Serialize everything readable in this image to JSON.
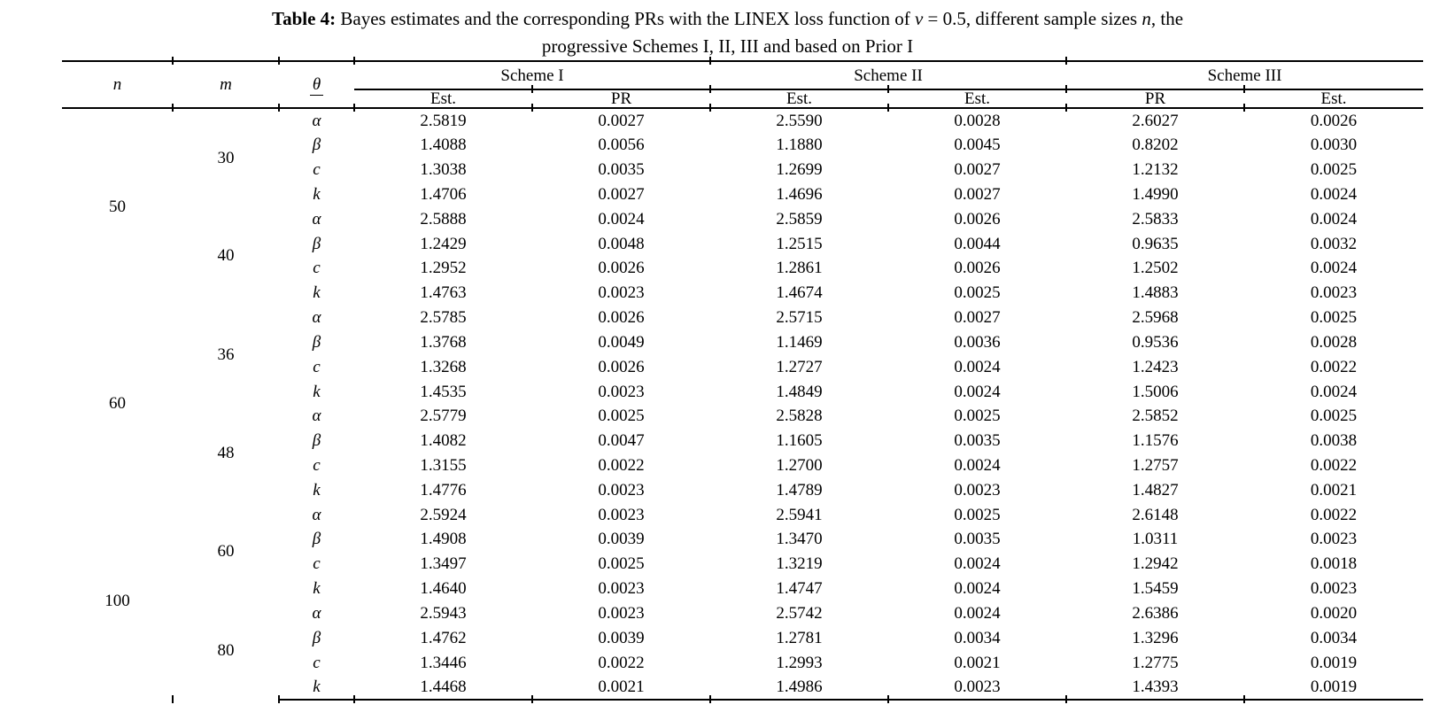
{
  "title": {
    "bold": "Table 4:",
    "seg1": " Bayes estimates and the corresponding PRs with the LINEX loss function of ",
    "nu": "ν",
    "seg2": " = 0.5, different sample sizes ",
    "n_italic": "n",
    "seg3": ", the",
    "line2": "progressive Schemes I, II, III and based on Prior I"
  },
  "table": {
    "columns": {
      "n": "n",
      "m": "m",
      "theta": "θ"
    },
    "schemes": [
      "Scheme I",
      "Scheme II",
      "Scheme III"
    ],
    "subheaders": [
      "Est.",
      "PR",
      "Est.",
      "Est.",
      "PR",
      "Est."
    ],
    "rows": [
      {
        "n": "50",
        "m": "30",
        "theta": "α",
        "values": [
          "2.5819",
          "0.0027",
          "2.5590",
          "0.0028",
          "2.6027",
          "0.0026"
        ]
      },
      {
        "theta": "β",
        "values": [
          "1.4088",
          "0.0056",
          "1.1880",
          "0.0045",
          "0.8202",
          "0.0030"
        ]
      },
      {
        "theta": "c",
        "values": [
          "1.3038",
          "0.0035",
          "1.2699",
          "0.0027",
          "1.2132",
          "0.0025"
        ]
      },
      {
        "theta": "k",
        "values": [
          "1.4706",
          "0.0027",
          "1.4696",
          "0.0027",
          "1.4990",
          "0.0024"
        ]
      },
      {
        "m": "40",
        "theta": "α",
        "values": [
          "2.5888",
          "0.0024",
          "2.5859",
          "0.0026",
          "2.5833",
          "0.0024"
        ]
      },
      {
        "theta": "β",
        "values": [
          "1.2429",
          "0.0048",
          "1.2515",
          "0.0044",
          "0.9635",
          "0.0032"
        ]
      },
      {
        "theta": "c",
        "values": [
          "1.2952",
          "0.0026",
          "1.2861",
          "0.0026",
          "1.2502",
          "0.0024"
        ]
      },
      {
        "theta": "k",
        "values": [
          "1.4763",
          "0.0023",
          "1.4674",
          "0.0025",
          "1.4883",
          "0.0023"
        ]
      },
      {
        "n": "60",
        "m": "36",
        "theta": "α",
        "values": [
          "2.5785",
          "0.0026",
          "2.5715",
          "0.0027",
          "2.5968",
          "0.0025"
        ]
      },
      {
        "theta": "β",
        "values": [
          "1.3768",
          "0.0049",
          "1.1469",
          "0.0036",
          "0.9536",
          "0.0028"
        ]
      },
      {
        "theta": "c",
        "values": [
          "1.3268",
          "0.0026",
          "1.2727",
          "0.0024",
          "1.2423",
          "0.0022"
        ]
      },
      {
        "theta": "k",
        "values": [
          "1.4535",
          "0.0023",
          "1.4849",
          "0.0024",
          "1.5006",
          "0.0024"
        ]
      },
      {
        "m": "48",
        "theta": "α",
        "values": [
          "2.5779",
          "0.0025",
          "2.5828",
          "0.0025",
          "2.5852",
          "0.0025"
        ]
      },
      {
        "theta": "β",
        "values": [
          "1.4082",
          "0.0047",
          "1.1605",
          "0.0035",
          "1.1576",
          "0.0038"
        ]
      },
      {
        "theta": "c",
        "values": [
          "1.3155",
          "0.0022",
          "1.2700",
          "0.0024",
          "1.2757",
          "0.0022"
        ]
      },
      {
        "theta": "k",
        "values": [
          "1.4776",
          "0.0023",
          "1.4789",
          "0.0023",
          "1.4827",
          "0.0021"
        ]
      },
      {
        "n": "100",
        "m": "60",
        "theta": "α",
        "values": [
          "2.5924",
          "0.0023",
          "2.5941",
          "0.0025",
          "2.6148",
          "0.0022"
        ]
      },
      {
        "theta": "β",
        "values": [
          "1.4908",
          "0.0039",
          "1.3470",
          "0.0035",
          "1.0311",
          "0.0023"
        ]
      },
      {
        "theta": "c",
        "values": [
          "1.3497",
          "0.0025",
          "1.3219",
          "0.0024",
          "1.2942",
          "0.0018"
        ]
      },
      {
        "theta": "k",
        "values": [
          "1.4640",
          "0.0023",
          "1.4747",
          "0.0024",
          "1.5459",
          "0.0023"
        ]
      },
      {
        "m": "80",
        "theta": "α",
        "values": [
          "2.5943",
          "0.0023",
          "2.5742",
          "0.0024",
          "2.6386",
          "0.0020"
        ]
      },
      {
        "theta": "β",
        "values": [
          "1.4762",
          "0.0039",
          "1.2781",
          "0.0034",
          "1.3296",
          "0.0034"
        ]
      },
      {
        "theta": "c",
        "values": [
          "1.3446",
          "0.0022",
          "1.2993",
          "0.0021",
          "1.2775",
          "0.0019"
        ]
      },
      {
        "theta": "k",
        "values": [
          "1.4468",
          "0.0021",
          "1.4986",
          "0.0023",
          "1.4393",
          "0.0019"
        ]
      }
    ]
  }
}
